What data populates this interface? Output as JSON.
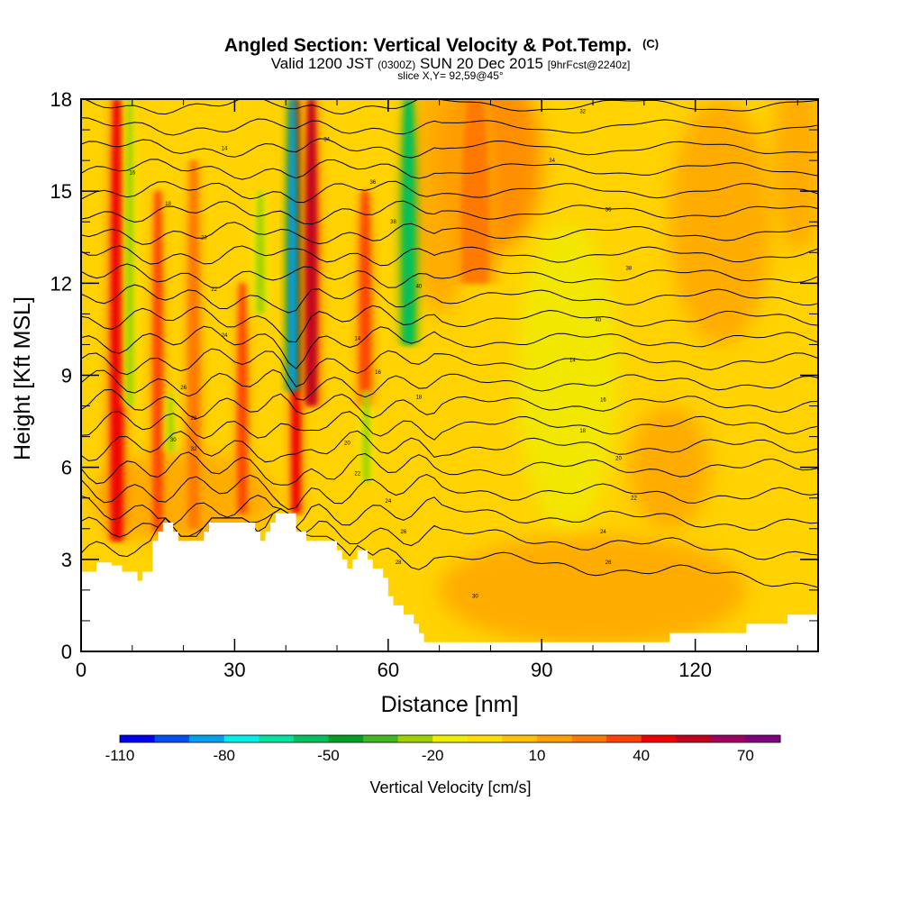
{
  "chart_data": {
    "type": "heatmap",
    "title": "Angled Section: Vertical Velocity & Pot.Temp.",
    "title_units": "(C)",
    "subtitle": {
      "valid": "Valid 1200 JST",
      "zulu": "(0300Z)",
      "date": "SUN 20 Dec 2015",
      "forecast": "[9hrFcst@2240z]",
      "slice": "slice X,Y= 92,59@45°"
    },
    "xlabel": "Distance [nm]",
    "ylabel": "Height [Kft MSL]",
    "xlim": [
      0,
      144
    ],
    "ylim": [
      0,
      18
    ],
    "xticks": [
      0,
      30,
      60,
      90,
      120
    ],
    "yticks": [
      0,
      3,
      6,
      9,
      12,
      15,
      18
    ],
    "terrain": {
      "x": [
        0,
        3,
        6,
        8,
        10,
        11,
        12,
        13,
        14,
        15,
        16,
        17,
        18,
        19,
        20,
        21,
        22,
        23,
        24,
        25,
        26,
        28,
        30,
        32,
        34,
        35,
        36,
        37,
        38,
        40,
        42,
        44,
        46,
        48,
        50,
        51,
        52,
        53,
        54,
        55,
        56,
        57,
        58,
        59,
        60,
        61,
        62,
        63,
        64,
        65,
        66,
        67,
        68,
        70,
        80,
        90,
        100,
        105,
        108,
        113,
        115,
        120,
        128,
        130,
        135,
        138,
        140,
        144
      ],
      "y": [
        2.6,
        2.9,
        2.8,
        2.6,
        2.6,
        2.3,
        2.6,
        2.6,
        3.6,
        3.9,
        4.2,
        4.2,
        3.9,
        3.6,
        3.6,
        3.6,
        3.6,
        3.6,
        3.9,
        4.2,
        4.2,
        4.2,
        4.2,
        4.2,
        3.9,
        3.6,
        3.9,
        4.2,
        4.5,
        4.5,
        3.9,
        3.6,
        3.6,
        3.6,
        3.3,
        3.0,
        2.7,
        3.0,
        3.3,
        3.3,
        3.0,
        2.7,
        2.7,
        2.4,
        1.8,
        1.5,
        1.5,
        1.2,
        1.2,
        0.9,
        0.6,
        0.3,
        0.3,
        0.3,
        0.3,
        0.3,
        0.3,
        0.3,
        0.3,
        0.3,
        0.6,
        0.6,
        0.6,
        0.9,
        0.9,
        1.2,
        1.2,
        1.2
      ]
    },
    "updrafts": [
      {
        "x": 7,
        "y0": 3.6,
        "y1": 18,
        "w": 2.2,
        "value": 45
      },
      {
        "x": 15,
        "y0": 3.9,
        "y1": 15,
        "w": 1.8,
        "value": 30
      },
      {
        "x": 22,
        "y0": 4,
        "y1": 16,
        "w": 2.0,
        "value": 25
      },
      {
        "x": 31.5,
        "y0": 4.5,
        "y1": 12,
        "w": 1.8,
        "value": 30
      },
      {
        "x": 42,
        "y0": 4.5,
        "y1": 18,
        "w": 1.6,
        "value": 45
      },
      {
        "x": 45,
        "y0": 8,
        "y1": 18,
        "w": 2.2,
        "value": 50
      },
      {
        "x": 55.5,
        "y0": 8,
        "y1": 15,
        "w": 1.8,
        "value": 38
      },
      {
        "x": 77,
        "y0": 12,
        "y1": 18,
        "w": 5,
        "value": 22
      }
    ],
    "downdrafts": [
      {
        "x": 9.5,
        "y0": 8,
        "y1": 18,
        "w": 1.4,
        "value": -30
      },
      {
        "x": 17.5,
        "y0": 6.5,
        "y1": 8.4,
        "w": 1.2,
        "value": -25
      },
      {
        "x": 35,
        "y0": 11,
        "y1": 15,
        "w": 1.6,
        "value": -28
      },
      {
        "x": 41.3,
        "y0": 8.5,
        "y1": 18,
        "w": 1.4,
        "value": -90
      },
      {
        "x": 55.7,
        "y0": 5.5,
        "y1": 8.5,
        "w": 1.4,
        "value": -30
      },
      {
        "x": 64,
        "y0": 10,
        "y1": 18,
        "w": 2.0,
        "value": -55
      }
    ],
    "isentropes": {
      "count": 22,
      "labels": [
        "14",
        "16",
        "18",
        "20",
        "22",
        "24",
        "26",
        "28",
        "30",
        "32",
        "34",
        "36",
        "38",
        "40"
      ]
    },
    "colorbar": {
      "label": "Vertical Velocity [cm/s]",
      "min": -110,
      "max": 80,
      "step": 10,
      "tick_labels": [
        "-110",
        "-80",
        "-50",
        "-20",
        "10",
        "40",
        "70"
      ],
      "colors": [
        "#0000ee",
        "#0050ee",
        "#00a0ee",
        "#00eeee",
        "#00e0a0",
        "#00c060",
        "#00a020",
        "#40b820",
        "#a0d000",
        "#eeee00",
        "#ffdd00",
        "#ffc000",
        "#ffa000",
        "#ff7800",
        "#ff4400",
        "#ee0000",
        "#c00020",
        "#a00060",
        "#800080"
      ]
    }
  }
}
